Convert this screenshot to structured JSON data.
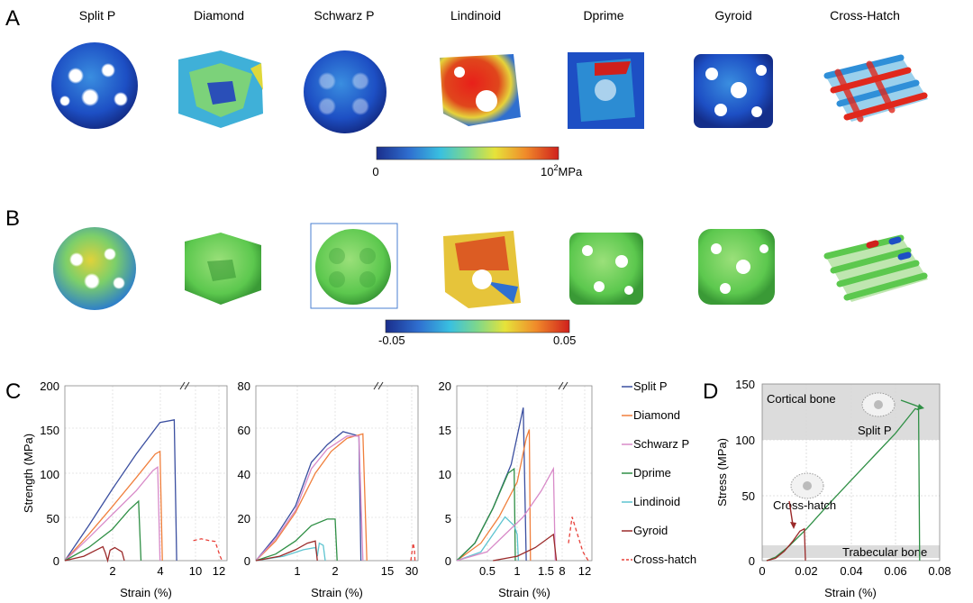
{
  "panels": {
    "a": "A",
    "b": "B",
    "c": "C",
    "d": "D"
  },
  "structures": [
    "Split P",
    "Diamond",
    "Schwarz P",
    "Lindinoid",
    "Dprime",
    "Gyroid",
    "Cross-Hatch"
  ],
  "colorbar_a": {
    "min_label": "0",
    "max_label": "10",
    "max_exp": "2",
    "unit": "MPa"
  },
  "colorbar_b": {
    "min_label": "-0.05",
    "max_label": "0.05"
  },
  "colors": {
    "split_p": "#3b4fa0",
    "diamond": "#f07f3c",
    "schwarz_p": "#d88ac8",
    "dprime": "#2f8f45",
    "lindinoid": "#5ec4d0",
    "gyroid": "#9b2a2a",
    "cross_hatch": "#e8413a"
  },
  "legend": [
    {
      "key": "split_p",
      "label": "Split P",
      "dashed": false
    },
    {
      "key": "diamond",
      "label": "Diamond",
      "dashed": false
    },
    {
      "key": "schwarz_p",
      "label": "Schwarz P",
      "dashed": false
    },
    {
      "key": "dprime",
      "label": "Dprime",
      "dashed": false
    },
    {
      "key": "lindinoid",
      "label": "Lindinoid",
      "dashed": false
    },
    {
      "key": "gyroid",
      "label": "Gyroid",
      "dashed": false
    },
    {
      "key": "cross_hatch",
      "label": "Cross-hatch",
      "dashed": true
    }
  ],
  "chart_data": [
    {
      "type": "line",
      "id": "c1",
      "ylabel": "Strength (MPa)",
      "xlabel": "Strain (%)",
      "ylim": [
        0,
        200
      ],
      "yticks": [
        0,
        50,
        100,
        150,
        200
      ],
      "xticks": [
        "2",
        "4",
        "10",
        "12"
      ],
      "series": [
        {
          "key": "split_p",
          "points": [
            [
              0,
              0
            ],
            [
              1,
              40
            ],
            [
              2,
              82
            ],
            [
              3,
              122
            ],
            [
              4,
              158
            ],
            [
              4.6,
              161
            ],
            [
              4.7,
              0
            ]
          ]
        },
        {
          "key": "diamond",
          "points": [
            [
              0,
              0
            ],
            [
              1,
              30
            ],
            [
              2,
              62
            ],
            [
              3,
              95
            ],
            [
              3.8,
              122
            ],
            [
              4.0,
              125
            ],
            [
              4.1,
              0
            ]
          ]
        },
        {
          "key": "schwarz_p",
          "points": [
            [
              0,
              0
            ],
            [
              1,
              26
            ],
            [
              2,
              53
            ],
            [
              3,
              80
            ],
            [
              3.7,
              103
            ],
            [
              3.9,
              107
            ],
            [
              4.0,
              0
            ]
          ]
        },
        {
          "key": "dprime",
          "points": [
            [
              0,
              0
            ],
            [
              1,
              15
            ],
            [
              2,
              36
            ],
            [
              2.7,
              58
            ],
            [
              3.1,
              68
            ],
            [
              3.2,
              0
            ]
          ]
        },
        {
          "key": "gyroid",
          "points": [
            [
              0,
              0
            ],
            [
              0.8,
              5
            ],
            [
              1.3,
              12
            ],
            [
              1.6,
              16
            ],
            [
              1.7,
              9
            ],
            [
              1.8,
              0
            ],
            [
              1.9,
              12
            ],
            [
              2.1,
              15
            ],
            [
              2.4,
              10
            ],
            [
              2.5,
              0
            ]
          ]
        },
        {
          "key": "cross_hatch",
          "points": [
            [
              9.6,
              23
            ],
            [
              10.4,
              25
            ],
            [
              11.2,
              23
            ],
            [
              11.8,
              22
            ],
            [
              12.3,
              5
            ],
            [
              12.5,
              0
            ]
          ]
        }
      ]
    },
    {
      "type": "line",
      "id": "c2",
      "ylabel": "",
      "xlabel": "Strain (%)",
      "ylim": [
        0,
        80
      ],
      "yticks": [
        0,
        20,
        40,
        60,
        80
      ],
      "xticks": [
        "1",
        "2",
        "15",
        "30"
      ],
      "series": [
        {
          "key": "split_p",
          "points": [
            [
              0,
              0
            ],
            [
              0.5,
              11
            ],
            [
              1.0,
              25
            ],
            [
              1.4,
              45
            ],
            [
              1.8,
              53
            ],
            [
              2.2,
              59
            ],
            [
              2.6,
              57
            ],
            [
              2.65,
              0
            ]
          ]
        },
        {
          "key": "diamond",
          "points": [
            [
              0,
              0
            ],
            [
              0.5,
              9
            ],
            [
              1.0,
              22
            ],
            [
              1.5,
              40
            ],
            [
              1.9,
              50
            ],
            [
              2.3,
              56
            ],
            [
              2.7,
              58
            ],
            [
              2.8,
              0
            ]
          ]
        },
        {
          "key": "schwarz_p",
          "points": [
            [
              0,
              0
            ],
            [
              0.5,
              10
            ],
            [
              1.0,
              23
            ],
            [
              1.4,
              42
            ],
            [
              1.8,
              51
            ],
            [
              2.3,
              57
            ],
            [
              2.6,
              57
            ],
            [
              2.7,
              0
            ]
          ]
        },
        {
          "key": "dprime",
          "points": [
            [
              0,
              0
            ],
            [
              0.5,
              3
            ],
            [
              1.0,
              9
            ],
            [
              1.4,
              16
            ],
            [
              1.8,
              19
            ],
            [
              2.0,
              19
            ],
            [
              2.05,
              0
            ]
          ]
        },
        {
          "key": "lindinoid",
          "points": [
            [
              0,
              0
            ],
            [
              0.7,
              2
            ],
            [
              1.2,
              5
            ],
            [
              1.5,
              6
            ],
            [
              1.55,
              2
            ],
            [
              1.6,
              8
            ],
            [
              1.7,
              7
            ],
            [
              1.75,
              0
            ]
          ]
        },
        {
          "key": "gyroid",
          "points": [
            [
              0,
              0
            ],
            [
              0.6,
              2
            ],
            [
              1.0,
              5
            ],
            [
              1.3,
              8
            ],
            [
              1.5,
              9
            ],
            [
              1.55,
              0
            ]
          ]
        },
        {
          "key": "cross_hatch",
          "points": [
            [
              28,
              0
            ],
            [
              29.3,
              8
            ],
            [
              30,
              5
            ],
            [
              30.3,
              0
            ]
          ]
        }
      ]
    },
    {
      "type": "line",
      "id": "c3",
      "ylabel": "",
      "xlabel": "Strain (%)",
      "ylim": [
        0,
        20
      ],
      "yticks": [
        0,
        5,
        10,
        15,
        20
      ],
      "xticks": [
        "0.5",
        "1",
        "1.5",
        "8",
        "12"
      ],
      "series": [
        {
          "key": "split_p",
          "points": [
            [
              0,
              0
            ],
            [
              0.3,
              2
            ],
            [
              0.6,
              6
            ],
            [
              0.9,
              11
            ],
            [
              1.1,
              17.5
            ],
            [
              1.15,
              0
            ]
          ]
        },
        {
          "key": "diamond",
          "points": [
            [
              0,
              0
            ],
            [
              0.4,
              2
            ],
            [
              0.7,
              5
            ],
            [
              1.0,
              9
            ],
            [
              1.15,
              14
            ],
            [
              1.2,
              15
            ],
            [
              1.22,
              0
            ]
          ]
        },
        {
          "key": "dprime",
          "points": [
            [
              0,
              0
            ],
            [
              0.3,
              2
            ],
            [
              0.6,
              6
            ],
            [
              0.85,
              10
            ],
            [
              0.95,
              10.5
            ],
            [
              0.97,
              0
            ]
          ]
        },
        {
          "key": "lindinoid",
          "points": [
            [
              0,
              0
            ],
            [
              0.4,
              1
            ],
            [
              0.6,
              3
            ],
            [
              0.8,
              5
            ],
            [
              0.95,
              4
            ],
            [
              1.0,
              3
            ],
            [
              1.02,
              0
            ]
          ]
        },
        {
          "key": "schwarz_p",
          "points": [
            [
              0,
              0
            ],
            [
              0.5,
              1
            ],
            [
              0.8,
              3
            ],
            [
              1.1,
              5
            ],
            [
              1.4,
              8
            ],
            [
              1.6,
              10.5
            ],
            [
              1.63,
              0
            ]
          ]
        },
        {
          "key": "gyroid",
          "points": [
            [
              0.6,
              0
            ],
            [
              1.0,
              0.5
            ],
            [
              1.3,
              1.5
            ],
            [
              1.6,
              3
            ],
            [
              1.65,
              0
            ]
          ]
        },
        {
          "key": "cross_hatch",
          "points": [
            [
              6.5,
              2
            ],
            [
              7.5,
              5
            ],
            [
              9,
              3
            ],
            [
              10.5,
              1
            ],
            [
              12,
              0
            ]
          ]
        }
      ]
    },
    {
      "type": "line",
      "id": "d",
      "ylabel": "Stress  (MPa)",
      "xlabel": "Strain (%)",
      "xlim": [
        0,
        0.08
      ],
      "ylim": [
        0,
        150
      ],
      "xticks": [
        0,
        0.02,
        0.04,
        0.06,
        0.08
      ],
      "yticks": [
        0,
        50,
        100,
        150
      ],
      "xtick_labels": [
        "0",
        "0.02",
        "0.04",
        "0.06",
        "0.08"
      ],
      "bands": [
        {
          "label": "Cortical bone",
          "y_range": [
            100,
            150
          ]
        },
        {
          "label": "Trabecular bone",
          "y_range": [
            2,
            12
          ]
        }
      ],
      "annotations": [
        "Split P",
        "Cross-hatch"
      ],
      "series": [
        {
          "key": "dprime",
          "points": [
            [
              0.002,
              0
            ],
            [
              0.006,
              3
            ],
            [
              0.012,
              12
            ],
            [
              0.02,
              27
            ],
            [
              0.03,
              48
            ],
            [
              0.04,
              68
            ],
            [
              0.05,
              88
            ],
            [
              0.06,
              108
            ],
            [
              0.066,
              122
            ],
            [
              0.069,
              129
            ],
            [
              0.0705,
              128
            ],
            [
              0.071,
              0
            ]
          ]
        },
        {
          "key": "gyroid",
          "points": [
            [
              0.002,
              0
            ],
            [
              0.006,
              2
            ],
            [
              0.01,
              8
            ],
            [
              0.014,
              17
            ],
            [
              0.017,
              25
            ],
            [
              0.019,
              27
            ],
            [
              0.0195,
              0
            ]
          ]
        }
      ]
    }
  ]
}
